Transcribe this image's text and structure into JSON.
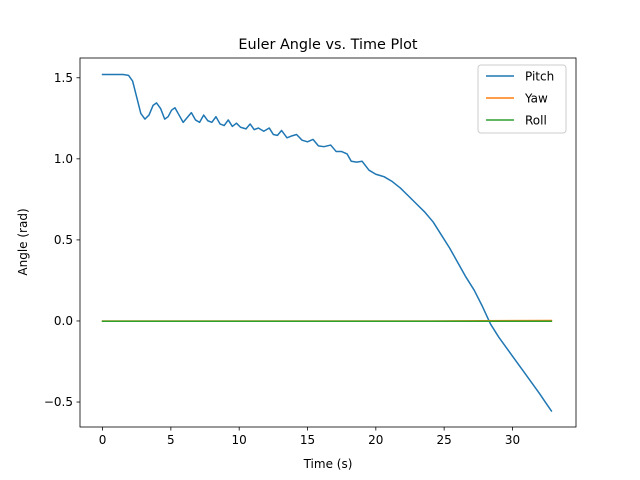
{
  "chart_data": {
    "type": "line",
    "title": "Euler Angle vs. Time Plot",
    "xlabel": "Time (s)",
    "ylabel": "Angle (rad)",
    "xlim": [
      -1.65,
      34.65
    ],
    "ylim": [
      -0.654,
      1.622
    ],
    "xticks": [
      0,
      5,
      10,
      15,
      20,
      25,
      30
    ],
    "xtick_labels": [
      "0",
      "5",
      "10",
      "15",
      "20",
      "25",
      "30"
    ],
    "yticks": [
      -0.5,
      0.0,
      0.5,
      1.0,
      1.5
    ],
    "ytick_labels": [
      "−0.5",
      "0.0",
      "0.5",
      "1.0",
      "1.5"
    ],
    "grid": false,
    "legend_position": "top-right",
    "series": [
      {
        "name": "Pitch",
        "color": "#1f77b4",
        "points": [
          [
            0,
            1.52
          ],
          [
            0.5,
            1.52
          ],
          [
            1.0,
            1.52
          ],
          [
            1.5,
            1.52
          ],
          [
            1.9,
            1.515
          ],
          [
            2.2,
            1.48
          ],
          [
            2.5,
            1.38
          ],
          [
            2.8,
            1.28
          ],
          [
            3.1,
            1.245
          ],
          [
            3.4,
            1.27
          ],
          [
            3.7,
            1.33
          ],
          [
            3.95,
            1.345
          ],
          [
            4.25,
            1.31
          ],
          [
            4.55,
            1.245
          ],
          [
            4.8,
            1.26
          ],
          [
            5.05,
            1.3
          ],
          [
            5.3,
            1.315
          ],
          [
            5.6,
            1.27
          ],
          [
            5.9,
            1.225
          ],
          [
            6.2,
            1.255
          ],
          [
            6.5,
            1.285
          ],
          [
            6.8,
            1.24
          ],
          [
            7.1,
            1.225
          ],
          [
            7.4,
            1.27
          ],
          [
            7.7,
            1.235
          ],
          [
            8.0,
            1.225
          ],
          [
            8.3,
            1.26
          ],
          [
            8.6,
            1.215
          ],
          [
            8.9,
            1.205
          ],
          [
            9.2,
            1.24
          ],
          [
            9.5,
            1.2
          ],
          [
            9.8,
            1.22
          ],
          [
            10.1,
            1.195
          ],
          [
            10.5,
            1.185
          ],
          [
            10.8,
            1.215
          ],
          [
            11.1,
            1.18
          ],
          [
            11.4,
            1.19
          ],
          [
            11.8,
            1.17
          ],
          [
            12.2,
            1.19
          ],
          [
            12.5,
            1.15
          ],
          [
            12.8,
            1.145
          ],
          [
            13.1,
            1.175
          ],
          [
            13.5,
            1.13
          ],
          [
            13.8,
            1.14
          ],
          [
            14.2,
            1.15
          ],
          [
            14.6,
            1.115
          ],
          [
            15.0,
            1.105
          ],
          [
            15.4,
            1.12
          ],
          [
            15.8,
            1.08
          ],
          [
            16.2,
            1.075
          ],
          [
            16.7,
            1.085
          ],
          [
            17.1,
            1.045
          ],
          [
            17.5,
            1.045
          ],
          [
            17.9,
            1.03
          ],
          [
            18.2,
            0.985
          ],
          [
            18.6,
            0.98
          ],
          [
            19.0,
            0.985
          ],
          [
            19.5,
            0.93
          ],
          [
            20.0,
            0.905
          ],
          [
            20.6,
            0.89
          ],
          [
            21.2,
            0.86
          ],
          [
            21.8,
            0.82
          ],
          [
            22.4,
            0.77
          ],
          [
            23.0,
            0.72
          ],
          [
            23.6,
            0.67
          ],
          [
            24.2,
            0.61
          ],
          [
            24.8,
            0.53
          ],
          [
            25.4,
            0.45
          ],
          [
            26.0,
            0.36
          ],
          [
            26.6,
            0.27
          ],
          [
            27.2,
            0.19
          ],
          [
            27.8,
            0.09
          ],
          [
            28.4,
            -0.02
          ],
          [
            29.0,
            -0.1
          ],
          [
            29.6,
            -0.17
          ],
          [
            30.2,
            -0.24
          ],
          [
            30.8,
            -0.31
          ],
          [
            31.4,
            -0.38
          ],
          [
            32.0,
            -0.45
          ],
          [
            32.4,
            -0.5
          ],
          [
            32.85,
            -0.555
          ]
        ]
      },
      {
        "name": "Yaw",
        "color": "#ff7f0e",
        "points": [
          [
            0,
            0.0
          ],
          [
            8,
            0.0
          ],
          [
            16,
            0.0
          ],
          [
            24,
            0.0
          ],
          [
            32.85,
            0.003
          ]
        ]
      },
      {
        "name": "Roll",
        "color": "#2ca02c",
        "points": [
          [
            0,
            -0.002
          ],
          [
            8,
            -0.002
          ],
          [
            16,
            -0.002
          ],
          [
            24,
            -0.002
          ],
          [
            32.85,
            -0.002
          ]
        ]
      }
    ]
  }
}
